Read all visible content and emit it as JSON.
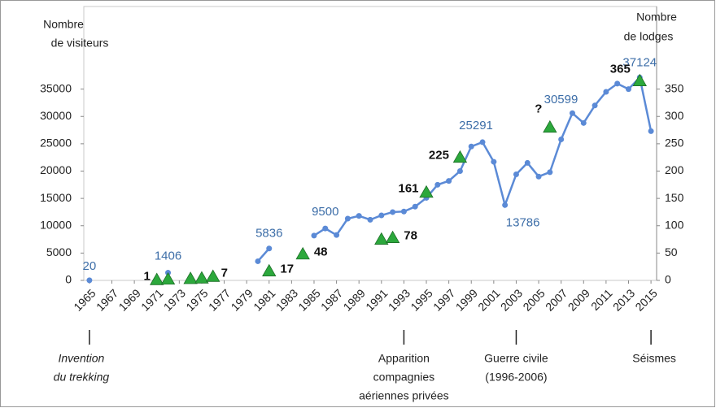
{
  "chart_data": {
    "type": "line",
    "y_label": [
      "Nombre",
      "de visiteurs"
    ],
    "y2_label": [
      "Nombre",
      "de lodges"
    ],
    "xlim": [
      1964.5,
      2015.5
    ],
    "xticks": [
      1965,
      1967,
      1969,
      1971,
      1973,
      1975,
      1977,
      1979,
      1981,
      1983,
      1985,
      1987,
      1989,
      1991,
      1993,
      1995,
      1997,
      1999,
      2001,
      2003,
      2005,
      2007,
      2009,
      2011,
      2013,
      2015
    ],
    "ylim": [
      0,
      40000
    ],
    "yticks": [
      0,
      5000,
      10000,
      15000,
      20000,
      25000,
      30000,
      35000
    ],
    "y2lim": [
      0,
      400
    ],
    "y2ticks": [
      0,
      50,
      100,
      150,
      200,
      250,
      300,
      350
    ],
    "series": [
      {
        "name": "visiteurs",
        "type": "line",
        "color": "#5b8ad6",
        "x": [
          1965,
          1968,
          1972,
          1976,
          1980,
          1981,
          1983,
          1985,
          1986,
          1987,
          1988,
          1989,
          1990,
          1991,
          1992,
          1993,
          1994,
          1995,
          1996,
          1997,
          1998,
          1999,
          2000,
          2001,
          2002,
          2003,
          2004,
          2005,
          2006,
          2007,
          2008,
          2009,
          2010,
          2011,
          2012,
          2013,
          2014,
          2015
        ],
        "values": [
          20,
          null,
          1406,
          null,
          3500,
          5836,
          null,
          8200,
          9500,
          8300,
          11300,
          11800,
          11100,
          11900,
          12500,
          12600,
          13500,
          15100,
          17500,
          18200,
          20000,
          24500,
          25291,
          21700,
          13786,
          19400,
          21500,
          19000,
          19800,
          25800,
          30599,
          28800,
          32000,
          34500,
          36000,
          35000,
          37124,
          27300
        ],
        "value_labels": [
          "20",
          null,
          "1406",
          null,
          null,
          "5836",
          null,
          null,
          "9500",
          null,
          null,
          null,
          null,
          null,
          null,
          null,
          null,
          null,
          null,
          null,
          null,
          null,
          "25291",
          null,
          "13786",
          null,
          null,
          null,
          null,
          null,
          "30599",
          null,
          null,
          null,
          null,
          null,
          "37124",
          null
        ]
      },
      {
        "name": "lodges",
        "type": "scatter",
        "axis": "y2",
        "color": "#2ca83c",
        "x": [
          1971,
          1972,
          1974,
          1975,
          1976,
          1981,
          1984,
          1991,
          1992,
          1995,
          1998,
          2006,
          2014
        ],
        "values": [
          1,
          2,
          3,
          4,
          7,
          17,
          48,
          75,
          78,
          161,
          225,
          280,
          365
        ],
        "value_labels": [
          "1",
          null,
          null,
          null,
          "7",
          "17",
          "48",
          null,
          "78",
          "161",
          "225",
          "?",
          "365"
        ]
      }
    ],
    "annotations": [
      {
        "x": 1965,
        "lines": [
          "Invention",
          "du trekking"
        ],
        "italic": true
      },
      {
        "x": 1993,
        "lines": [
          "Apparition",
          "compagnies",
          "aériennes privées"
        ]
      },
      {
        "x": 2003,
        "lines": [
          "Guerre civile",
          "(1996-2006)"
        ]
      },
      {
        "x": 2015,
        "lines": [
          "Séismes"
        ]
      }
    ]
  }
}
